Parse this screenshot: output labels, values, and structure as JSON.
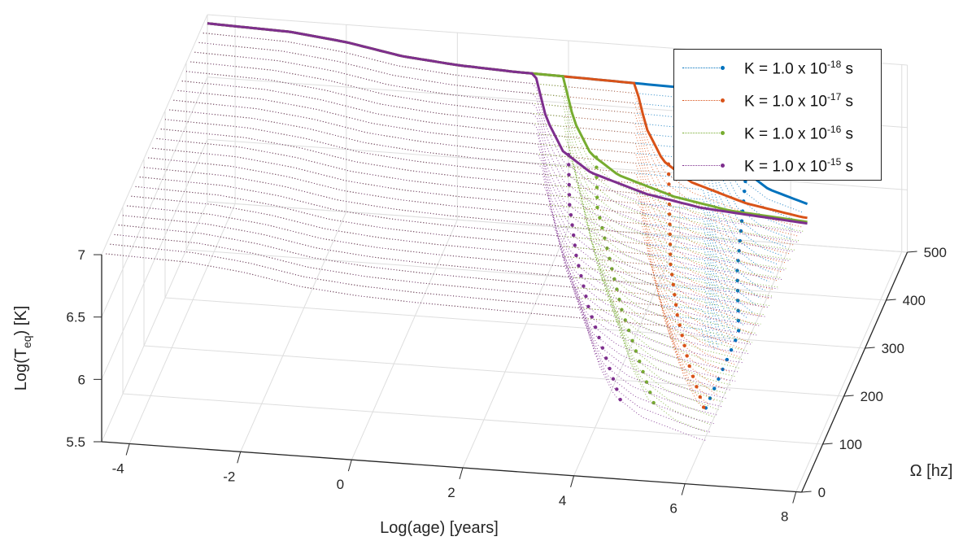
{
  "chart_data": {
    "type": "line",
    "projection": "3d",
    "xlabel": "Log(age) [years]",
    "ylabel": "Ω [hz]",
    "zlabel_main": "Log(T",
    "zlabel_sub": "eq",
    "zlabel_tail": ") [K]",
    "xlim": [
      -4.5,
      8.1
    ],
    "ylim": [
      0,
      500
    ],
    "zlim": [
      5.5,
      7
    ],
    "xticks": [
      "-4",
      "-2",
      "0",
      "2",
      "4",
      "6",
      "8"
    ],
    "yticks": [
      "0",
      "100",
      "200",
      "300",
      "400",
      "500"
    ],
    "zticks": [
      "5.5",
      "6",
      "6.5",
      "7"
    ],
    "grid": true,
    "legend_position": "top-right",
    "plateau_curve": {
      "x": [
        -4.5,
        -3,
        -2,
        -1,
        0,
        1,
        2,
        3,
        4,
        5,
        6.3
      ],
      "z": [
        6.93,
        6.91,
        6.86,
        6.78,
        6.74,
        6.72,
        6.71,
        6.7,
        6.69,
        6.68,
        6.67
      ]
    },
    "cooling_profile": {
      "delta_age": [
        0,
        0.2,
        0.5,
        1,
        2,
        3,
        5
      ],
      "delta_logT": [
        0,
        -0.35,
        -0.6,
        -0.75,
        -0.88,
        -0.95,
        -1.0
      ]
    },
    "omega_values": [
      0,
      100,
      200,
      300,
      400,
      500
    ],
    "series": [
      {
        "name_main": "K = 1.0 x 10",
        "name_exp": "-18",
        "name_unit": " s",
        "color": "#0072BD",
        "drop_age": [
          6.3,
          6.0,
          5.6,
          5.2,
          4.9,
          4.6
        ]
      },
      {
        "name_main": "K = 1.0 x 10",
        "name_exp": "-17",
        "name_unit": " s",
        "color": "#D95319",
        "drop_age": [
          5.8,
          5.1,
          4.5,
          4.0,
          3.6,
          3.2
        ]
      },
      {
        "name_main": "K = 1.0 x 10",
        "name_exp": "-16",
        "name_unit": " s",
        "color": "#77AC30",
        "drop_age": [
          4.9,
          4.2,
          3.5,
          2.9,
          2.3,
          1.9
        ]
      },
      {
        "name_main": "K = 1.0 x 10",
        "name_exp": "-15",
        "name_unit": " s",
        "color": "#7E2F8E",
        "drop_age": [
          4.3,
          3.6,
          2.9,
          2.3,
          1.8,
          1.4
        ]
      }
    ]
  }
}
